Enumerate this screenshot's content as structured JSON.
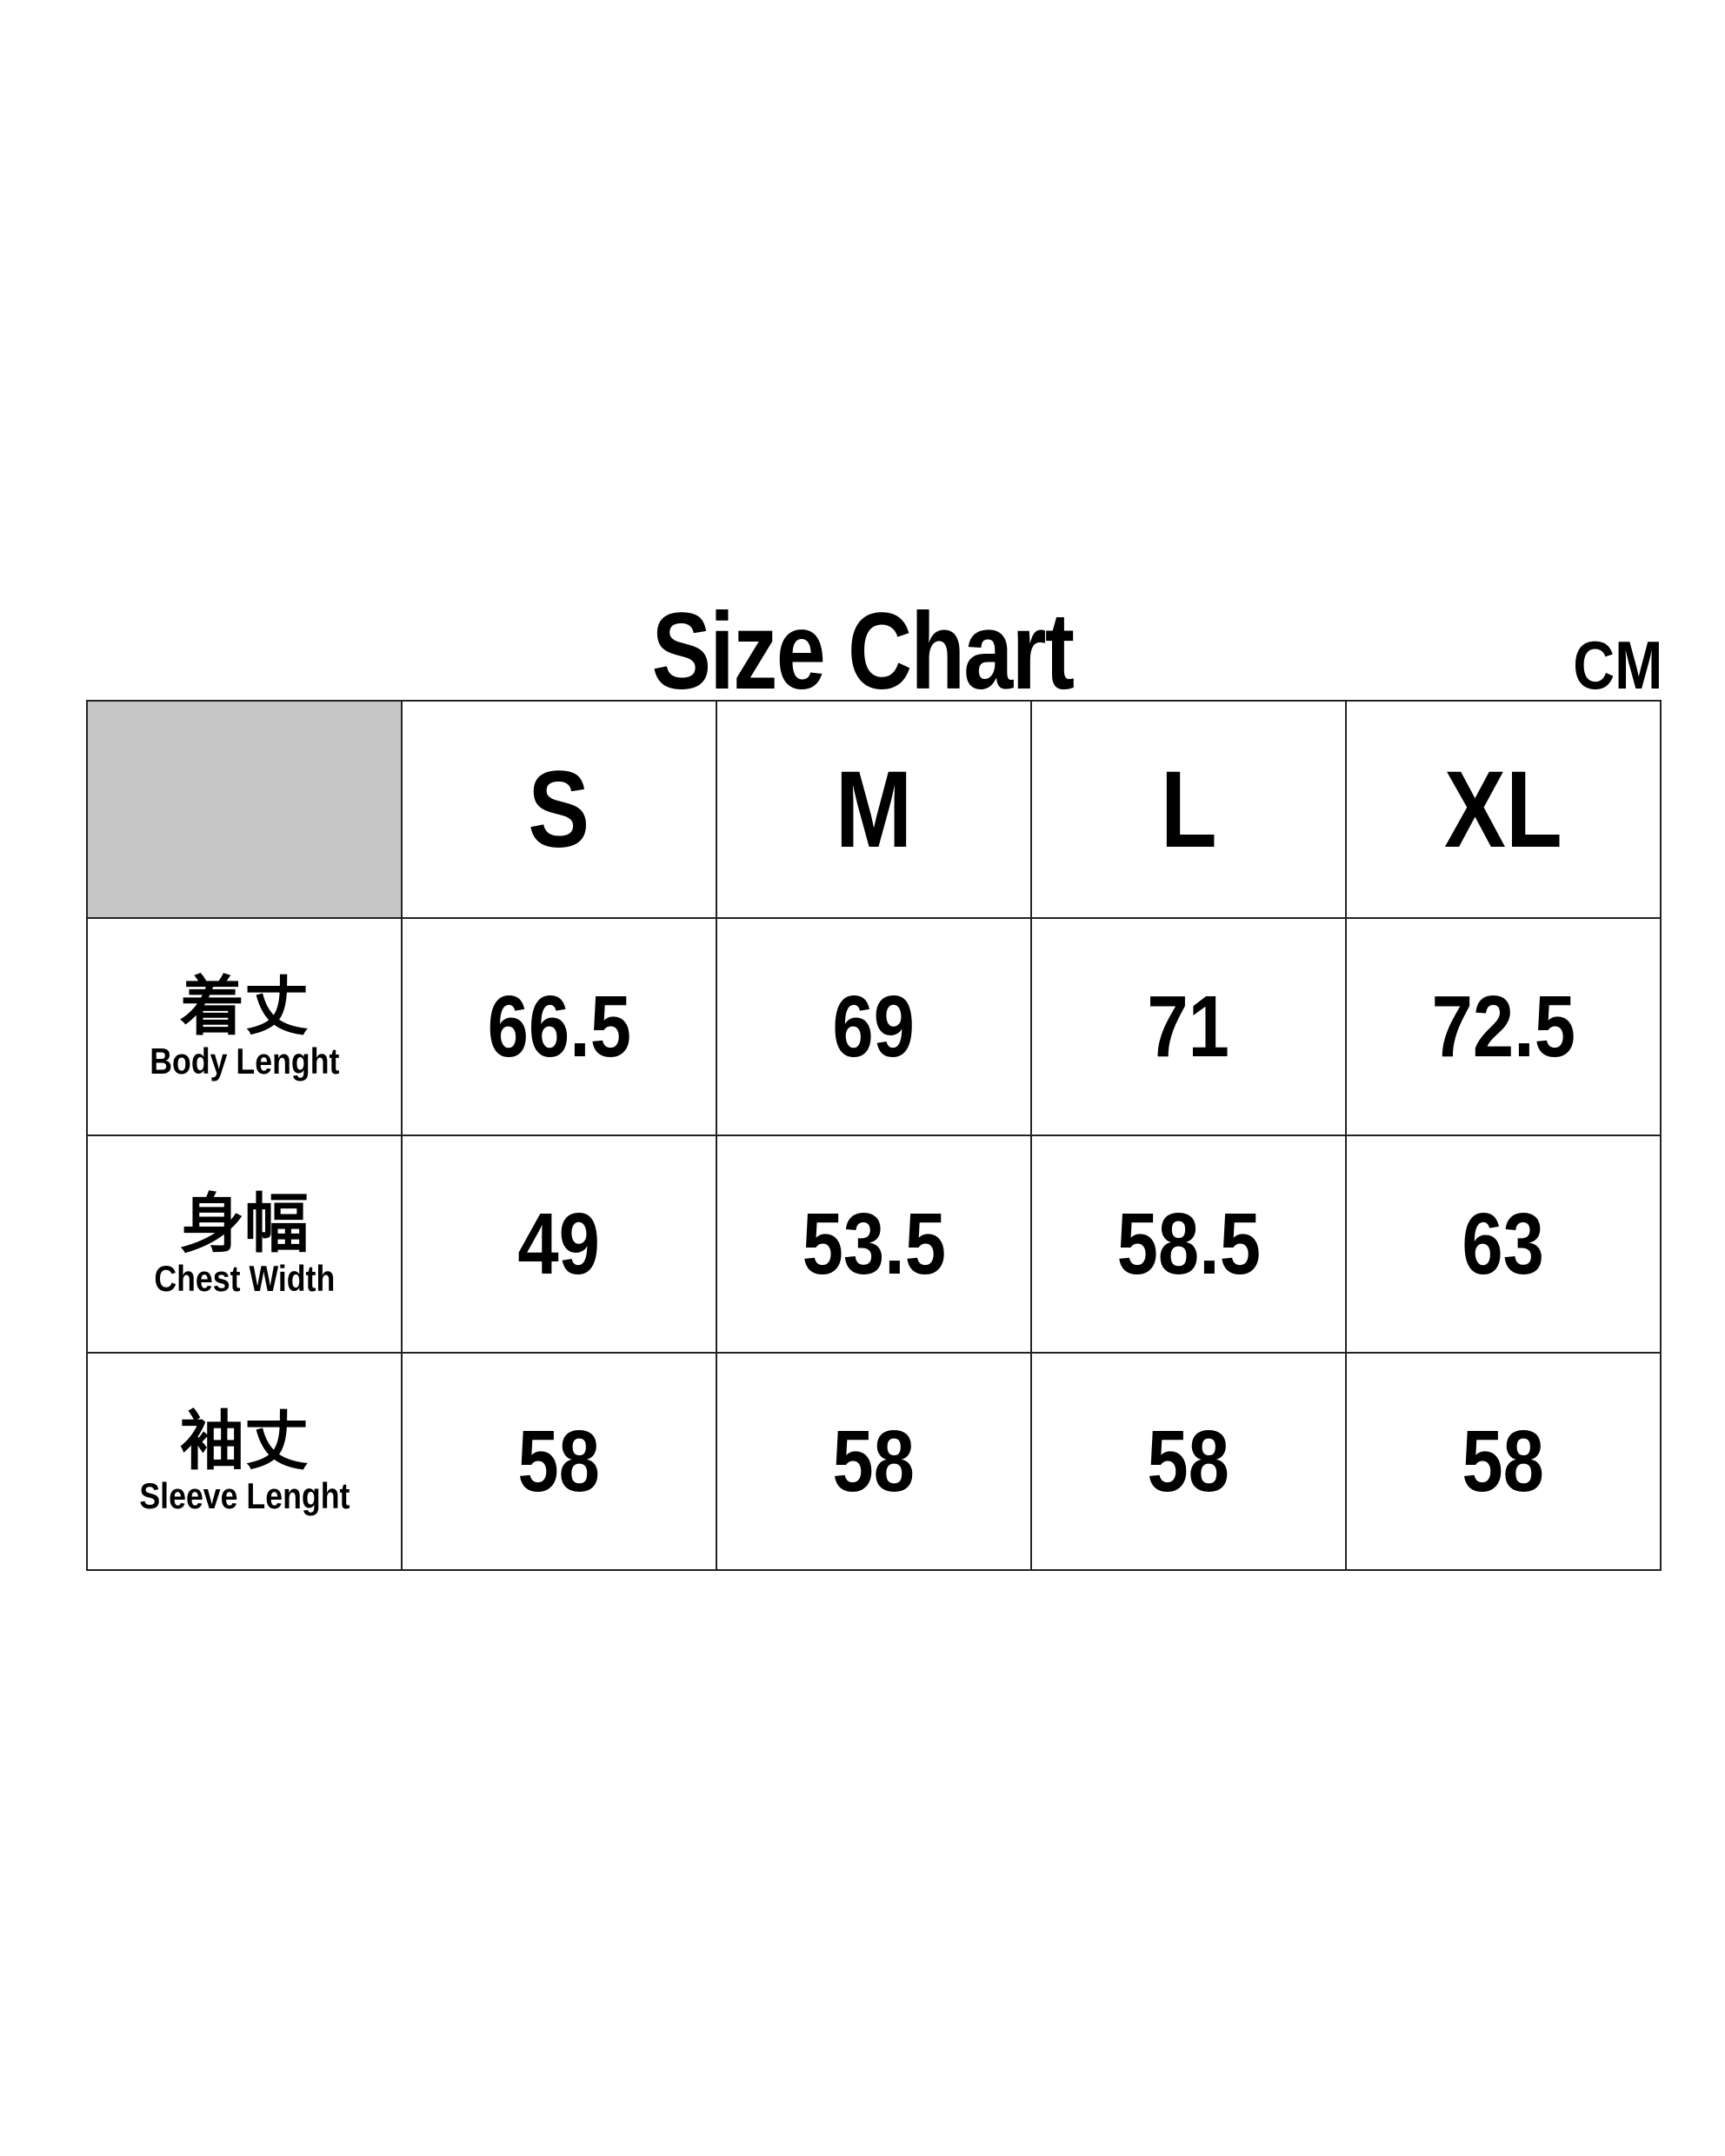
{
  "title": "Size Chart",
  "unit": "CM",
  "chart_data": {
    "type": "table",
    "title": "Size Chart",
    "unit": "CM",
    "columns": [
      "S",
      "M",
      "L",
      "XL"
    ],
    "rows": [
      {
        "label_jp": "着丈",
        "label_en": "Body Lenght",
        "values": [
          "66.5",
          "69",
          "71",
          "72.5"
        ]
      },
      {
        "label_jp": "身幅",
        "label_en": "Chest Width",
        "values": [
          "49",
          "53.5",
          "58.5",
          "63"
        ]
      },
      {
        "label_jp": "袖丈",
        "label_en": "Sleeve Lenght",
        "values": [
          "58",
          "58",
          "58",
          "58"
        ]
      }
    ],
    "header_corner_color": "#c6c6c6"
  }
}
